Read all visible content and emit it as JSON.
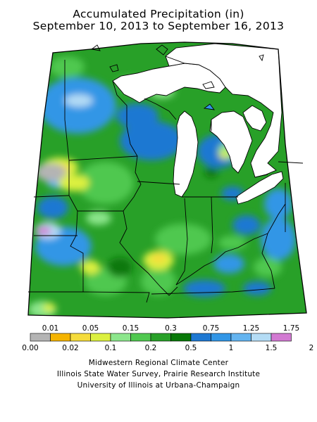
{
  "map": {
    "title_line1": "Accumulated Precipitation (in)",
    "title_line2": "September 10, 2013 to September 16, 2013"
  },
  "legend": {
    "upper_labels": [
      "0.01",
      "0.05",
      "0.15",
      "0.3",
      "0.75",
      "1.25",
      "1.75"
    ],
    "lower_labels": [
      "0.00",
      "0.02",
      "0.1",
      "0.2",
      "0.5",
      "1",
      "1.5",
      "2"
    ],
    "colors": [
      "#b4b4b4",
      "#f5b400",
      "#f5dc3c",
      "#dcf040",
      "#8ce68c",
      "#50c850",
      "#28a028",
      "#087808",
      "#1e78d2",
      "#3296e6",
      "#64b4f0",
      "#b4dcf5",
      "#d27ad2"
    ]
  },
  "credits": {
    "line1": "Midwestern Regional Climate Center",
    "line2": "Illinois State Water Survey, Prairie Research Institute",
    "line3": "University of Illinois at Urbana-Champaign"
  }
}
